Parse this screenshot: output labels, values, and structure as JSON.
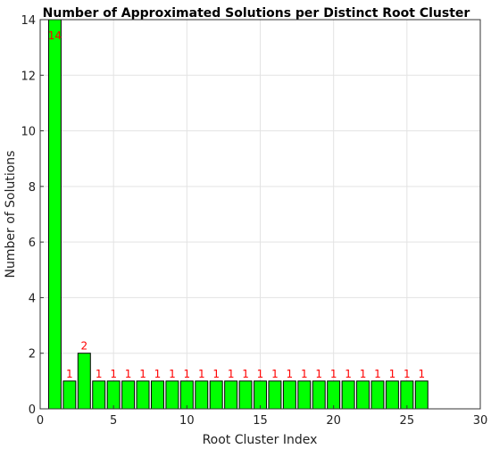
{
  "chart_data": {
    "type": "bar",
    "title": "Number of Approximated Solutions per Distinct Root Cluster",
    "xlabel": "Root Cluster Index",
    "ylabel": "Number of Solutions",
    "x": [
      1,
      2,
      3,
      4,
      5,
      6,
      7,
      8,
      9,
      10,
      11,
      12,
      13,
      14,
      15,
      16,
      17,
      18,
      19,
      20,
      21,
      22,
      23,
      24,
      25,
      26
    ],
    "values": [
      14,
      1,
      2,
      1,
      1,
      1,
      1,
      1,
      1,
      1,
      1,
      1,
      1,
      1,
      1,
      1,
      1,
      1,
      1,
      1,
      1,
      1,
      1,
      1,
      1,
      1
    ],
    "data_labels": [
      "14",
      "1",
      "2",
      "1",
      "1",
      "1",
      "1",
      "1",
      "1",
      "1",
      "1",
      "1",
      "1",
      "1",
      "1",
      "1",
      "1",
      "1",
      "1",
      "1",
      "1",
      "1",
      "1",
      "1",
      "1",
      "1"
    ],
    "xlim": [
      0,
      30
    ],
    "ylim": [
      0,
      14
    ],
    "xticks": [
      0,
      5,
      10,
      15,
      20,
      25,
      30
    ],
    "yticks": [
      0,
      2,
      4,
      6,
      8,
      10,
      12,
      14
    ],
    "xtick_labels": [
      "0",
      "5",
      "10",
      "15",
      "20",
      "25",
      "30"
    ],
    "ytick_labels": [
      "0",
      "2",
      "4",
      "6",
      "8",
      "10",
      "12",
      "14"
    ],
    "grid": true,
    "bar_color": "#00ff00",
    "label_color": "#ff0000"
  }
}
